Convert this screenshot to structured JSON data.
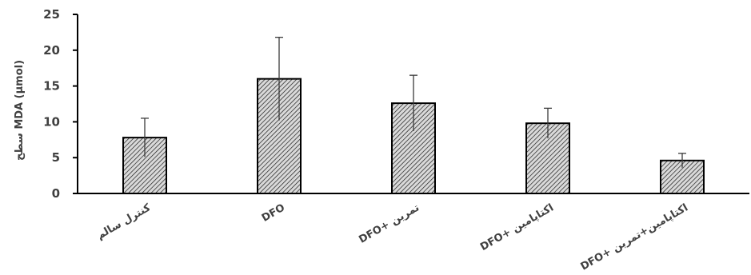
{
  "chart_data": {
    "type": "bar",
    "categories": [
      "کنترل سالم",
      "DFO",
      "DFO+ تمرین",
      "DFO+ اکتاپامین",
      "DFO+ اکتاپامین+تمرین"
    ],
    "values": [
      7.8,
      16.0,
      12.6,
      9.8,
      4.6
    ],
    "error": [
      2.7,
      5.8,
      3.9,
      2.1,
      1.0
    ],
    "ylim": [
      0,
      25
    ],
    "yticks": [
      0,
      5,
      10,
      15,
      20,
      25
    ],
    "ylabel": "سطح MDA (µmol)",
    "xlabel": "",
    "title": "",
    "grid": false,
    "bar_fill": "#d9d9d9",
    "bar_hatch": "#1a1a1a"
  }
}
